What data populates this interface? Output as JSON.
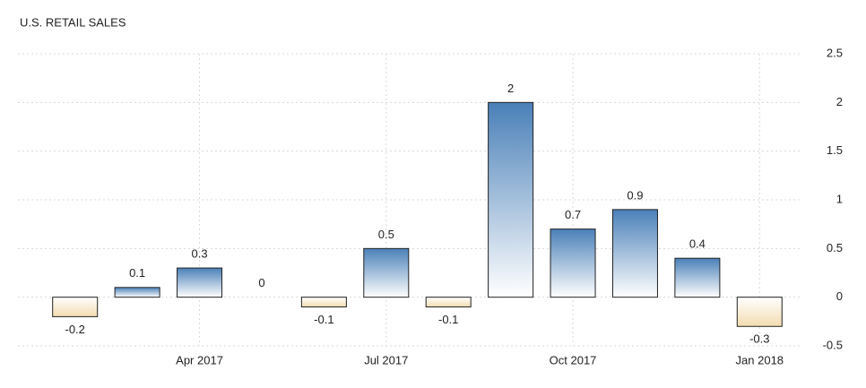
{
  "chart_data": {
    "type": "bar",
    "title": "U.S. RETAIL SALES",
    "categories": [
      null,
      null,
      "Apr 2017",
      null,
      null,
      "Jul 2017",
      null,
      null,
      "Oct 2017",
      null,
      null,
      "Jan 2018"
    ],
    "values": [
      -0.2,
      0.1,
      0.3,
      0,
      -0.1,
      0.5,
      -0.1,
      2,
      0.7,
      0.9,
      0.4,
      -0.3
    ],
    "color_positive": "#4a80b8",
    "color_negative": "#f3dcb0",
    "ylim": [
      -0.5,
      2.5
    ],
    "yticks": [
      2.5,
      2,
      1.5,
      1,
      0.5,
      0,
      -0.5
    ],
    "grid": true
  }
}
